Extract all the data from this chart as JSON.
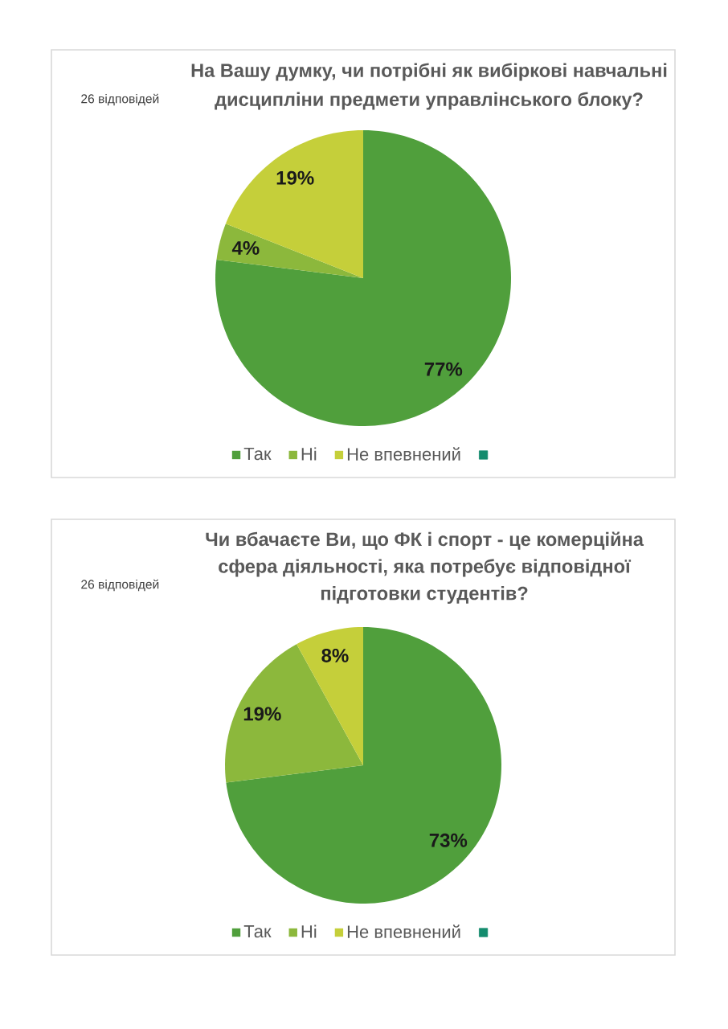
{
  "chart_data": [
    {
      "type": "pie",
      "title": "На Вашу думку, чи потрібні як вибіркові навчальні дисципліни предмети управлінського блоку?",
      "annotations": [
        "26 відповідей"
      ],
      "categories": [
        "Так",
        "Ні",
        "Не впевнений",
        null
      ],
      "values": [
        77,
        4,
        19,
        0
      ],
      "colors": [
        "#509f3c",
        "#8cb83c",
        "#c5cf3a",
        "#148c6e"
      ],
      "value_labels": [
        "77%",
        "4%",
        "19%",
        null
      ],
      "legend": "bottom"
    },
    {
      "type": "pie",
      "title": "Чи вбачаєте Ви, що ФК і спорт - це комерційна сфера діяльності, яка потребує відповідної підготовки студентів?",
      "annotations": [
        "26 відповідей"
      ],
      "categories": [
        "Так",
        "Ні",
        "Не впевнений",
        null
      ],
      "values": [
        73,
        19,
        8,
        0
      ],
      "colors": [
        "#509f3c",
        "#8cb83c",
        "#c5cf3a",
        "#148c6e"
      ],
      "value_labels": [
        "73%",
        "19%",
        "8%",
        null
      ],
      "legend": "bottom"
    }
  ]
}
